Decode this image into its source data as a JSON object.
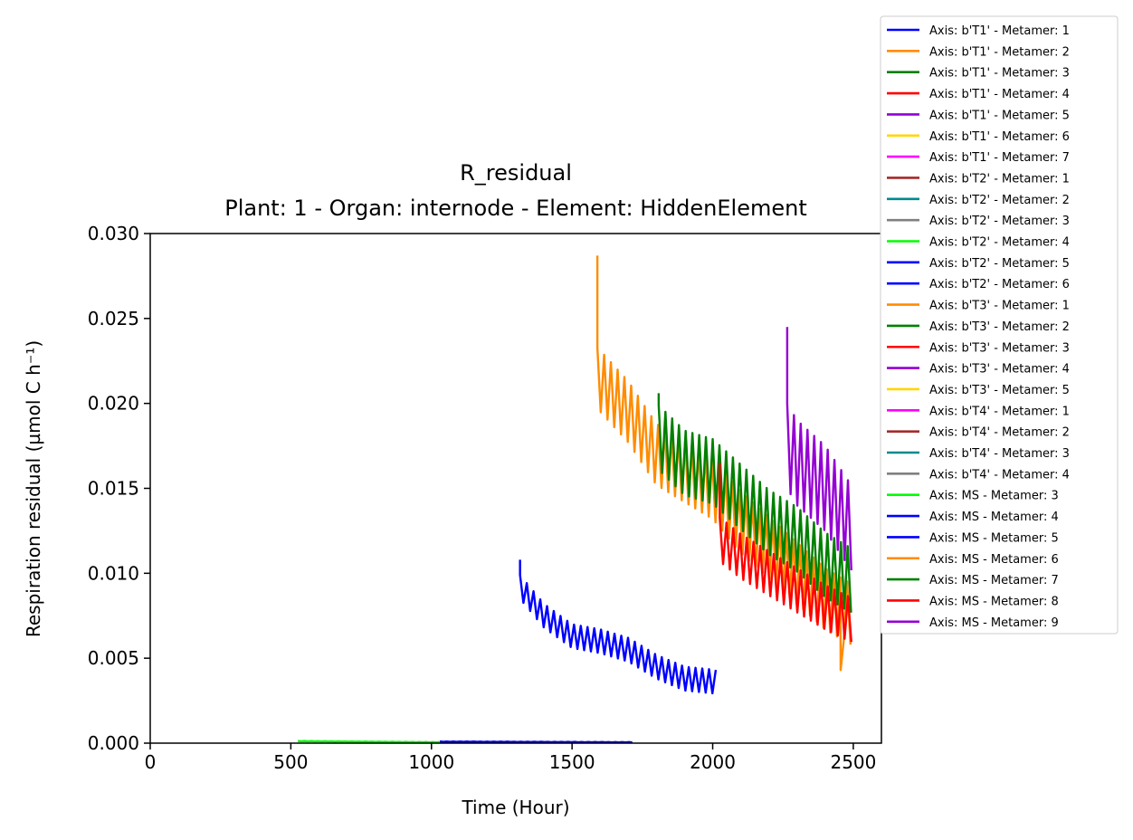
{
  "chart_data": {
    "type": "line",
    "title": "R_residual",
    "subtitle": "Plant: 1 - Organ: internode - Element: HiddenElement",
    "xlabel": "Time (Hour)",
    "ylabel": "Respiration residual (µmol C h⁻¹)",
    "xlim": [
      0,
      2600
    ],
    "ylim": [
      0,
      0.03
    ],
    "xticks": [
      0,
      500,
      1000,
      1500,
      2000,
      2500
    ],
    "xtick_labels": [
      "0",
      "500",
      "1000",
      "1500",
      "2000",
      "2500"
    ],
    "yticks": [
      0,
      0.005,
      0.01,
      0.015,
      0.02,
      0.025,
      0.03
    ],
    "ytick_labels": [
      "0.000",
      "0.005",
      "0.010",
      "0.015",
      "0.020",
      "0.025",
      "0.030"
    ],
    "grid": false,
    "legend_position": "outside-right",
    "legend": [
      {
        "label": "Axis: b'T1' - Metamer: 1",
        "color": "#0000ff"
      },
      {
        "label": "Axis: b'T1' - Metamer: 2",
        "color": "#ff8c00"
      },
      {
        "label": "Axis: b'T1' - Metamer: 3",
        "color": "#008000"
      },
      {
        "label": "Axis: b'T1' - Metamer: 4",
        "color": "#ff0000"
      },
      {
        "label": "Axis: b'T1' - Metamer: 5",
        "color": "#9400d3"
      },
      {
        "label": "Axis: b'T1' - Metamer: 6",
        "color": "#ffd700"
      },
      {
        "label": "Axis: b'T1' - Metamer: 7",
        "color": "#ff00ff"
      },
      {
        "label": "Axis: b'T2' - Metamer: 1",
        "color": "#a52a2a"
      },
      {
        "label": "Axis: b'T2' - Metamer: 2",
        "color": "#008b8b"
      },
      {
        "label": "Axis: b'T2' - Metamer: 3",
        "color": "#808080"
      },
      {
        "label": "Axis: b'T2' - Metamer: 4",
        "color": "#00ff00"
      },
      {
        "label": "Axis: b'T2' - Metamer: 5",
        "color": "#0000ff"
      },
      {
        "label": "Axis: b'T2' - Metamer: 6",
        "color": "#0000ff"
      },
      {
        "label": "Axis: b'T3' - Metamer: 1",
        "color": "#ff8c00"
      },
      {
        "label": "Axis: b'T3' - Metamer: 2",
        "color": "#008000"
      },
      {
        "label": "Axis: b'T3' - Metamer: 3",
        "color": "#ff0000"
      },
      {
        "label": "Axis: b'T3' - Metamer: 4",
        "color": "#9400d3"
      },
      {
        "label": "Axis: b'T3' - Metamer: 5",
        "color": "#ffd700"
      },
      {
        "label": "Axis: b'T4' - Metamer: 1",
        "color": "#ff00ff"
      },
      {
        "label": "Axis: b'T4' - Metamer: 2",
        "color": "#a52a2a"
      },
      {
        "label": "Axis: b'T4' - Metamer: 3",
        "color": "#008b8b"
      },
      {
        "label": "Axis: b'T4' - Metamer: 4",
        "color": "#808080"
      },
      {
        "label": "Axis: MS - Metamer: 3",
        "color": "#00ff00"
      },
      {
        "label": "Axis: MS - Metamer: 4",
        "color": "#0000ff"
      },
      {
        "label": "Axis: MS - Metamer: 5",
        "color": "#0000ff"
      },
      {
        "label": "Axis: MS - Metamer: 6",
        "color": "#ff8c00"
      },
      {
        "label": "Axis: MS - Metamer: 7",
        "color": "#008000"
      },
      {
        "label": "Axis: MS - Metamer: 8",
        "color": "#ff0000"
      },
      {
        "label": "Axis: MS - Metamer: 9",
        "color": "#9400d3"
      }
    ],
    "series": [
      {
        "color": "#00ff00",
        "start": 525,
        "end": 1030,
        "period": 24,
        "base": [
          [
            525,
            0.00012
          ],
          [
            800,
            8e-05
          ],
          [
            1030,
            5e-05
          ]
        ],
        "amp": 1e-05
      },
      {
        "color": "#0000ff",
        "start": 1030,
        "end": 1715,
        "period": 24,
        "base": [
          [
            1030,
            9e-05
          ],
          [
            1400,
            7e-05
          ],
          [
            1715,
            5e-05
          ]
        ],
        "amp": 1e-05
      },
      {
        "color": "#0000ff",
        "start": 1315,
        "end": 2020,
        "period": 24,
        "spike": 0.0108,
        "base": [
          [
            1315,
            0.0092
          ],
          [
            1400,
            0.0075
          ],
          [
            1500,
            0.0063
          ],
          [
            1600,
            0.006
          ],
          [
            1700,
            0.0055
          ],
          [
            1800,
            0.0045
          ],
          [
            1900,
            0.0038
          ],
          [
            2020,
            0.0036
          ]
        ],
        "amp": 0.0007
      },
      {
        "color": "#ff8c00",
        "start": 1590,
        "end": 2500,
        "period": 24,
        "spike": 0.0287,
        "base": [
          [
            1590,
            0.0215
          ],
          [
            1700,
            0.0195
          ],
          [
            1800,
            0.017
          ],
          [
            1900,
            0.016
          ],
          [
            2000,
            0.015
          ],
          [
            2100,
            0.013
          ],
          [
            2200,
            0.0115
          ],
          [
            2300,
            0.01
          ],
          [
            2400,
            0.0085
          ],
          [
            2500,
            0.0075
          ]
        ],
        "amp": 0.0018,
        "dip": [
          2455,
          0.0043
        ]
      },
      {
        "color": "#008000",
        "start": 1808,
        "end": 2500,
        "period": 24,
        "spike": 0.0206,
        "base": [
          [
            1808,
            0.018
          ],
          [
            1900,
            0.0165
          ],
          [
            2000,
            0.016
          ],
          [
            2100,
            0.0145
          ],
          [
            2200,
            0.013
          ],
          [
            2300,
            0.012
          ],
          [
            2400,
            0.0105
          ],
          [
            2500,
            0.0095
          ]
        ],
        "amp": 0.0019
      },
      {
        "color": "#ff0000",
        "start": 2025,
        "end": 2500,
        "period": 24,
        "spike": 0.0165,
        "base": [
          [
            2025,
            0.012
          ],
          [
            2100,
            0.011
          ],
          [
            2200,
            0.01
          ],
          [
            2300,
            0.009
          ],
          [
            2400,
            0.008
          ],
          [
            2500,
            0.0072
          ]
        ],
        "amp": 0.0013
      },
      {
        "color": "#9400d3",
        "start": 2265,
        "end": 2500,
        "period": 24,
        "spike": 0.0245,
        "base": [
          [
            2265,
            0.0175
          ],
          [
            2300,
            0.0165
          ],
          [
            2400,
            0.015
          ],
          [
            2500,
            0.0125
          ]
        ],
        "amp": 0.0025
      }
    ]
  }
}
